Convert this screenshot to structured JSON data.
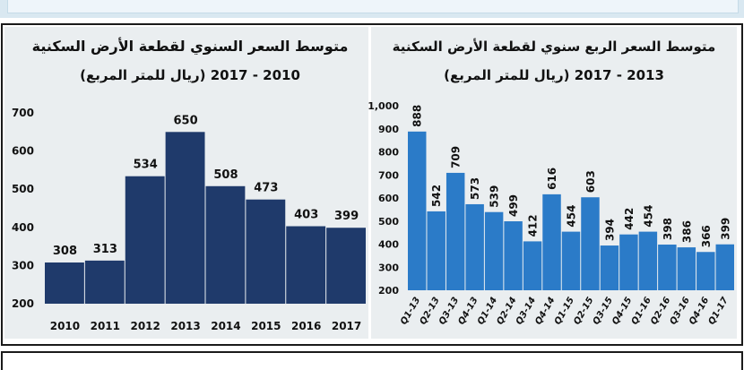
{
  "chart_data": [
    {
      "type": "bar",
      "title": "متوسط السعر السنوي لقطعة الأرض السكنية",
      "subtitle": "(ريال للمتر المربع) 2010 - 2017",
      "categories": [
        "2010",
        "2011",
        "2012",
        "2013",
        "2014",
        "2015",
        "2016",
        "2017"
      ],
      "values": [
        308,
        313,
        534,
        650,
        508,
        473,
        403,
        399
      ],
      "yticks": [
        "200",
        "300",
        "400",
        "500",
        "600",
        "700"
      ],
      "ylim": [
        200,
        700
      ],
      "color": "#1f3a6b",
      "grid": false,
      "legend": "none"
    },
    {
      "type": "bar",
      "title": "متوسط السعر الربع سنوي لقطعة الأرض السكنية",
      "subtitle": "(ريال للمتر المربع) 2013 - 2017",
      "categories": [
        "Q1-13",
        "Q2-13",
        "Q3-13",
        "Q4-13",
        "Q1-14",
        "Q2-14",
        "Q3-14",
        "Q4-14",
        "Q1-15",
        "Q2-15",
        "Q3-15",
        "Q4-15",
        "Q1-16",
        "Q2-16",
        "Q3-16",
        "Q4-16",
        "Q1-17"
      ],
      "values": [
        888,
        542,
        709,
        573,
        539,
        499,
        412,
        616,
        454,
        603,
        394,
        442,
        454,
        398,
        386,
        366,
        399
      ],
      "yticks": [
        "200",
        "300",
        "400",
        "500",
        "600",
        "700",
        "800",
        "900",
        "1,000"
      ],
      "ylim": [
        200,
        1000
      ],
      "color": "#2b7bc8",
      "grid": false,
      "legend": "none"
    }
  ]
}
